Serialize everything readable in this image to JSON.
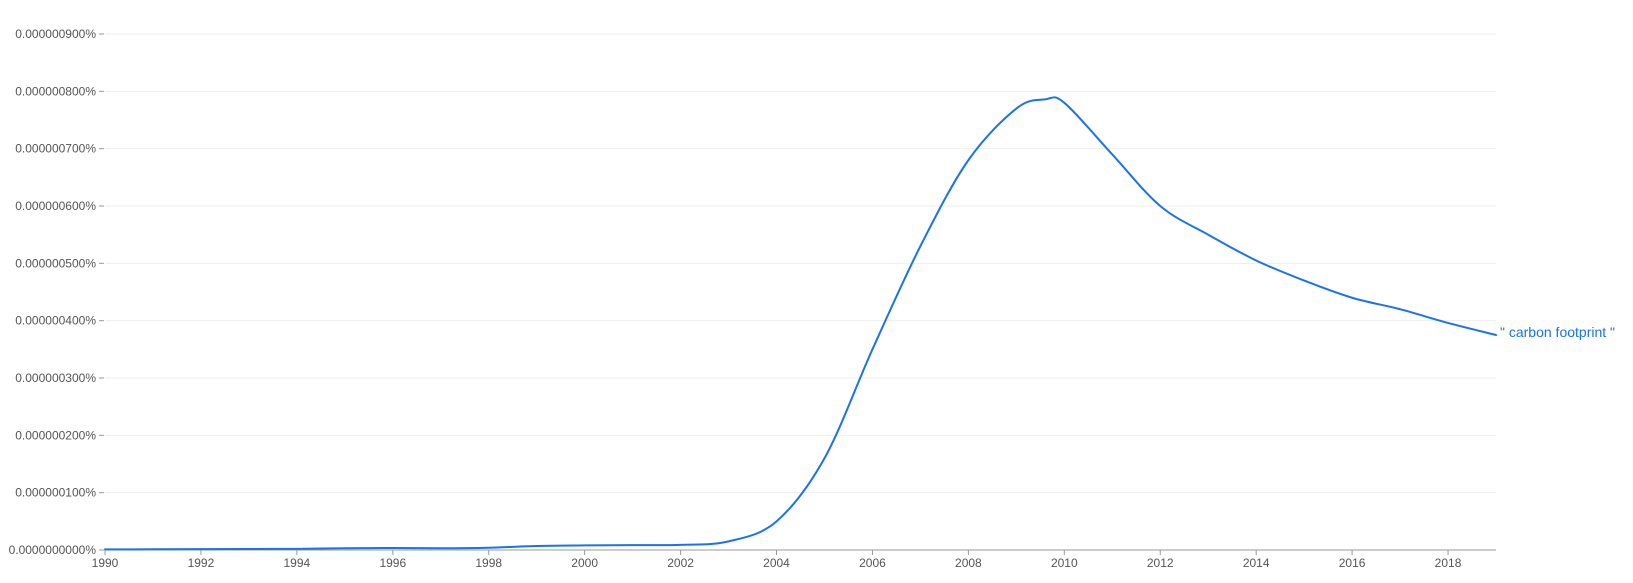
{
  "chart_data": {
    "type": "line",
    "title": "",
    "xlabel": "",
    "ylabel": "",
    "xlim": [
      1990,
      2019
    ],
    "ylim": [
      0,
      9e-07
    ],
    "grid": true,
    "legend": "end-of-line",
    "colors": {
      "line": "#1a73e8",
      "label": "#1a73e8",
      "axis": "#999999",
      "grid": "#eeeeee",
      "tick_text": "#555555"
    },
    "x_ticks": [
      1990,
      1992,
      1994,
      1996,
      1998,
      2000,
      2002,
      2004,
      2006,
      2008,
      2010,
      2012,
      2014,
      2016,
      2018
    ],
    "x_tick_labels": [
      "1990",
      "1992",
      "1994",
      "1996",
      "1998",
      "2000",
      "2002",
      "2004",
      "2006",
      "2008",
      "2010",
      "2012",
      "2014",
      "2016",
      "2018"
    ],
    "y_ticks": [
      0,
      1e-07,
      2e-07,
      3e-07,
      4e-07,
      5e-07,
      6e-07,
      7e-07,
      8e-07,
      9e-07
    ],
    "y_tick_labels": [
      "0.0000000000%",
      "0.000000100%",
      "0.000000200%",
      "0.000000300%",
      "0.000000400%",
      "0.000000500%",
      "0.000000600%",
      "0.000000700%",
      "0.000000800%",
      "0.000000900%"
    ],
    "series": [
      {
        "name": "\" carbon footprint \"",
        "points": [
          [
            1990,
            1e-09
          ],
          [
            1991,
            1.2e-09
          ],
          [
            1992,
            1.5e-09
          ],
          [
            1993,
            1.8e-09
          ],
          [
            1994,
            2e-09
          ],
          [
            1995,
            3e-09
          ],
          [
            1996,
            3.5e-09
          ],
          [
            1997,
            3e-09
          ],
          [
            1998,
            4e-09
          ],
          [
            1999,
            7e-09
          ],
          [
            2000,
            8e-09
          ],
          [
            2001,
            8.5e-09
          ],
          [
            2002,
            9e-09
          ],
          [
            2003,
            1.5e-08
          ],
          [
            2004,
            5e-08
          ],
          [
            2005,
            1.6e-07
          ],
          [
            2006,
            3.5e-07
          ],
          [
            2007,
            5.3e-07
          ],
          [
            2008,
            6.8e-07
          ],
          [
            2009,
            7.7e-07
          ],
          [
            2009.6,
            7.86e-07
          ],
          [
            2010,
            7.8e-07
          ],
          [
            2011,
            6.9e-07
          ],
          [
            2012,
            6e-07
          ],
          [
            2013,
            5.5e-07
          ],
          [
            2014,
            5.05e-07
          ],
          [
            2015,
            4.7e-07
          ],
          [
            2016,
            4.4e-07
          ],
          [
            2017,
            4.2e-07
          ],
          [
            2018,
            3.96e-07
          ],
          [
            2019,
            3.75e-07
          ]
        ]
      }
    ]
  }
}
